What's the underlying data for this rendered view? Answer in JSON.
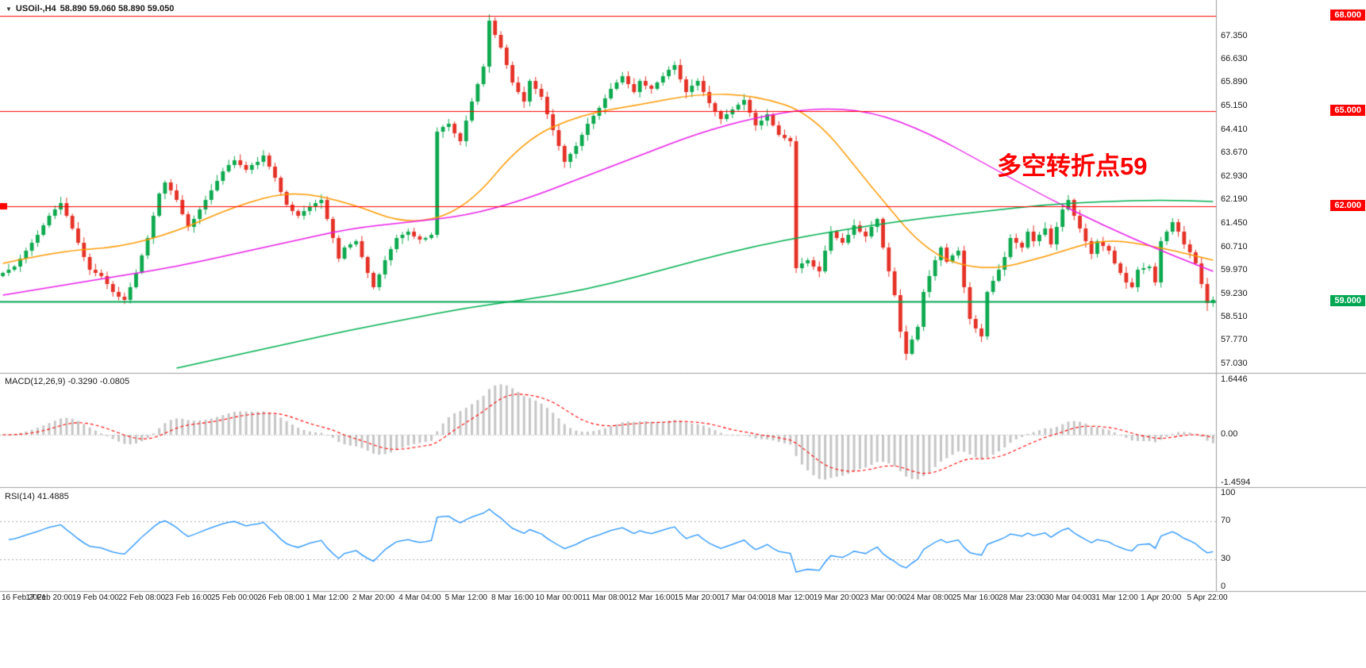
{
  "window": {
    "symbol_marker": "▼",
    "title": "USOil-,H4",
    "ohlc_text": "58.890 59.060 58.890 59.050"
  },
  "annotation": {
    "text": "多空转折点59",
    "color": "#FF0000"
  },
  "chart_data": {
    "type": "candlestick",
    "symbol": "USOil-",
    "timeframe": "H4",
    "current_ohlc": {
      "open": 58.89,
      "high": 59.06,
      "low": 58.89,
      "close": 59.05
    },
    "up_color": "#0CA94E",
    "down_color": "#E53126",
    "first_open": 59.8,
    "closes": [
      59.9,
      60.0,
      60.1,
      60.35,
      60.6,
      60.85,
      61.1,
      61.4,
      61.7,
      61.9,
      62.1,
      61.7,
      61.3,
      60.85,
      60.4,
      60.0,
      59.9,
      59.8,
      59.55,
      59.3,
      59.15,
      59.05,
      59.45,
      59.9,
      60.45,
      61.0,
      61.7,
      62.4,
      62.75,
      62.5,
      62.2,
      61.75,
      61.35,
      61.6,
      61.9,
      62.2,
      62.5,
      62.8,
      63.1,
      63.3,
      63.45,
      63.3,
      63.15,
      63.3,
      63.4,
      63.6,
      63.25,
      62.9,
      62.45,
      62.05,
      61.85,
      61.7,
      61.85,
      62.0,
      62.1,
      62.2,
      61.6,
      61.0,
      60.35,
      60.7,
      60.8,
      60.9,
      60.4,
      59.9,
      59.45,
      59.85,
      60.3,
      60.65,
      61.0,
      61.1,
      61.2,
      61.05,
      60.95,
      61.0,
      61.1,
      64.35,
      64.5,
      64.6,
      64.3,
      64.05,
      64.7,
      65.3,
      65.85,
      66.4,
      67.85,
      67.4,
      67.0,
      66.45,
      65.9,
      65.6,
      65.3,
      65.95,
      65.7,
      65.45,
      64.9,
      64.4,
      63.9,
      63.4,
      63.65,
      63.9,
      64.25,
      64.6,
      64.85,
      65.1,
      65.4,
      65.7,
      65.9,
      66.1,
      65.85,
      65.6,
      65.95,
      65.8,
      65.7,
      65.9,
      66.1,
      66.3,
      66.45,
      66.0,
      65.6,
      65.8,
      65.95,
      65.6,
      65.25,
      65.0,
      64.75,
      64.9,
      65.05,
      65.2,
      65.35,
      64.95,
      64.55,
      64.7,
      64.9,
      64.55,
      64.25,
      64.15,
      64.05,
      60.05,
      60.2,
      60.3,
      60.1,
      59.95,
      60.6,
      61.2,
      61.0,
      60.85,
      61.1,
      61.4,
      61.2,
      61.05,
      61.35,
      61.6,
      60.7,
      59.95,
      59.2,
      58.05,
      57.35,
      57.8,
      58.2,
      59.3,
      59.8,
      60.3,
      60.7,
      60.25,
      60.45,
      60.6,
      59.45,
      58.45,
      58.15,
      57.9,
      59.3,
      59.65,
      60.0,
      60.4,
      61.0,
      60.85,
      60.7,
      61.2,
      60.9,
      61.1,
      61.3,
      60.8,
      61.35,
      61.9,
      62.2,
      61.7,
      61.3,
      60.9,
      60.5,
      60.9,
      60.75,
      60.6,
      60.2,
      59.9,
      59.6,
      59.45,
      60.0,
      60.05,
      60.1,
      59.6,
      60.9,
      61.2,
      61.5,
      61.2,
      60.8,
      60.55,
      60.2,
      59.55,
      58.95,
      59.05
    ],
    "wick_overrides": {
      "21": {
        "low": 58.92
      },
      "84": {
        "high": 68.05
      },
      "156": {
        "low": 57.15
      },
      "169": {
        "low": 57.72
      },
      "184": {
        "high": 62.35
      },
      "208": {
        "low": 58.7
      }
    },
    "h_lines": [
      {
        "price": 68.0,
        "color": "#FF0000",
        "width": 1
      },
      {
        "price": 65.0,
        "color": "#FF0000",
        "width": 1
      },
      {
        "price": 62.0,
        "color": "#FF0000",
        "width": 1
      },
      {
        "price": 59.0,
        "color": "#00A651",
        "width": 2
      }
    ],
    "ma_lines": [
      {
        "name": "ma-fast-orange",
        "color": "#FF9900",
        "width": 1.4,
        "start_index": 0,
        "step": 10,
        "values": [
          60.2,
          60.6,
          60.7,
          61.2,
          62.0,
          62.5,
          62.1,
          61.4,
          61.9,
          64.1,
          64.9,
          65.2,
          65.55,
          65.5,
          64.9,
          62.6,
          60.45,
          59.95,
          60.4,
          61.0,
          60.7,
          60.3
        ]
      },
      {
        "name": "ma-mid-magenta",
        "color": "#E91EE9",
        "width": 1.4,
        "start_index": 0,
        "step": 10,
        "values": [
          59.2,
          59.5,
          59.8,
          60.1,
          60.5,
          60.9,
          61.3,
          61.5,
          61.7,
          62.2,
          62.9,
          63.6,
          64.3,
          64.8,
          65.1,
          65.0,
          64.3,
          63.3,
          62.3,
          61.4,
          60.6,
          59.95
        ]
      },
      {
        "name": "ma-slow-green",
        "color": "#00B050",
        "width": 1.6,
        "start_index": 30,
        "step": 10,
        "values": [
          56.9,
          57.3,
          57.7,
          58.1,
          58.45,
          58.8,
          59.05,
          59.35,
          59.8,
          60.3,
          60.75,
          61.1,
          61.4,
          61.65,
          61.85,
          62.05,
          62.15,
          62.2,
          62.15
        ]
      }
    ],
    "price_axis": {
      "ticks": [
        "67.350",
        "66.630",
        "65.890",
        "65.150",
        "64.410",
        "63.670",
        "62.930",
        "62.190",
        "61.450",
        "60.710",
        "59.970",
        "59.230",
        "58.510",
        "57.770",
        "57.030"
      ],
      "tick_prices": [
        67.35,
        66.63,
        65.89,
        65.15,
        64.41,
        63.67,
        62.93,
        62.19,
        61.45,
        60.71,
        59.97,
        59.23,
        58.51,
        57.77,
        57.03
      ],
      "level_labels": [
        {
          "text": "68.000",
          "price": 68.0,
          "bg": "#FF0000",
          "fg": "#FFFFFF"
        },
        {
          "text": "65.000",
          "price": 65.0,
          "bg": "#FF0000",
          "fg": "#FFFFFF"
        },
        {
          "text": "62.000",
          "price": 62.0,
          "bg": "#FF0000",
          "fg": "#FFFFFF"
        },
        {
          "text": "59.000",
          "price": 59.0,
          "bg": "#00A651",
          "fg": "#FFFFFF"
        }
      ]
    },
    "time_labels": [
      "16 Feb 2021",
      "17 Feb 20:00",
      "19 Feb 04:00",
      "22 Feb 08:00",
      "23 Feb 16:00",
      "25 Feb 00:00",
      "26 Feb 08:00",
      "1 Mar 12:00",
      "2 Mar 20:00",
      "4 Mar 04:00",
      "5 Mar 12:00",
      "8 Mar 16:00",
      "10 Mar 00:00",
      "11 Mar 08:00",
      "12 Mar 16:00",
      "15 Mar 20:00",
      "17 Mar 04:00",
      "18 Mar 12:00",
      "19 Mar 20:00",
      "23 Mar 00:00",
      "24 Mar 08:00",
      "25 Mar 16:00",
      "28 Mar 23:00",
      "30 Mar 04:00",
      "31 Mar 12:00",
      "1 Apr 20:00",
      "5 Apr 22:00"
    ],
    "indicators": {
      "macd": {
        "label": "MACD(12,26,9) -0.3290 -0.0805",
        "fast": 12,
        "slow": 26,
        "signal": 9,
        "main_value": -0.329,
        "signal_value": -0.0805,
        "ylim": [
          -1.4594,
          1.6446
        ],
        "axis_labels": [
          "1.6446",
          "0.00",
          "-1.4594"
        ],
        "axis_values": [
          1.6446,
          0,
          -1.4594
        ],
        "histogram_color": "#C6C6C6",
        "signal_color": "#FF0000"
      },
      "rsi": {
        "label": "RSI(14) 41.4885",
        "period": 14,
        "value": 41.4885,
        "color": "#1E90FF",
        "levels": [
          70,
          30
        ],
        "range": [
          0,
          100
        ],
        "axis_labels": [
          "100",
          "70",
          "30",
          "0"
        ],
        "axis_values": [
          100,
          70,
          30,
          0
        ]
      }
    }
  }
}
